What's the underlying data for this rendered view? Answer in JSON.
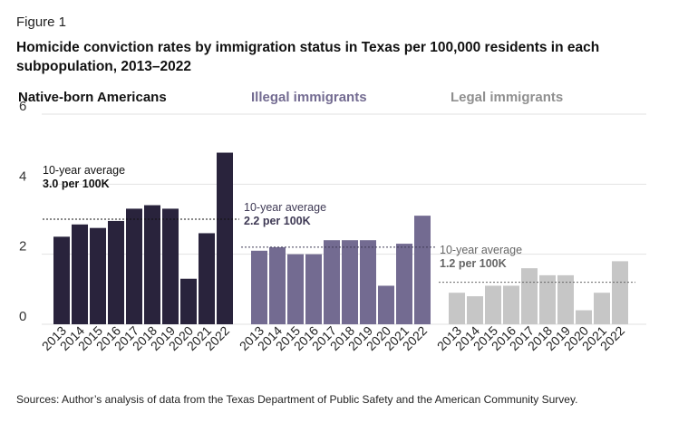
{
  "figure_label": "Figure 1",
  "title": "Homicide conviction rates by immigration status in Texas per 100,000 residents in each subpopulation, 2013–2022",
  "source": "Sources: Author’s analysis of data from the Texas Department of Public Safety and the American Community Survey.",
  "colors": {
    "native": "#29233c",
    "illegal": "#736b91",
    "legal": "#c6c6c6",
    "grid": "#e2e2e2"
  },
  "chart_data": {
    "type": "bar",
    "title": "Homicide conviction rates by immigration status in Texas per 100,000 residents in each subpopulation, 2013–2022",
    "ylim": [
      0,
      6
    ],
    "yticks": [
      "0",
      "2",
      "4",
      "6"
    ],
    "grid": true,
    "categories": [
      "2013",
      "2014",
      "2015",
      "2016",
      "2017",
      "2018",
      "2019",
      "2020",
      "2021",
      "2022"
    ],
    "series": [
      {
        "name": "Native-born Americans",
        "values": [
          2.5,
          2.85,
          2.75,
          2.95,
          3.3,
          3.4,
          3.3,
          1.3,
          2.6,
          4.9
        ],
        "avg_line1": "10-year average",
        "avg_line2": "3.0 per 100K",
        "average": 3.0
      },
      {
        "name": "Illegal immigrants",
        "values": [
          2.1,
          2.2,
          2.0,
          2.0,
          2.4,
          2.4,
          2.4,
          1.1,
          2.3,
          3.1
        ],
        "avg_line1": "10-year average",
        "avg_line2": "2.2 per 100K",
        "average": 2.2
      },
      {
        "name": "Legal immigrants",
        "values": [
          0.9,
          0.8,
          1.1,
          1.1,
          1.6,
          1.4,
          1.4,
          0.4,
          0.9,
          1.8
        ],
        "avg_line1": "10-year average",
        "avg_line2": "1.2 per 100K",
        "average": 1.2
      }
    ]
  }
}
